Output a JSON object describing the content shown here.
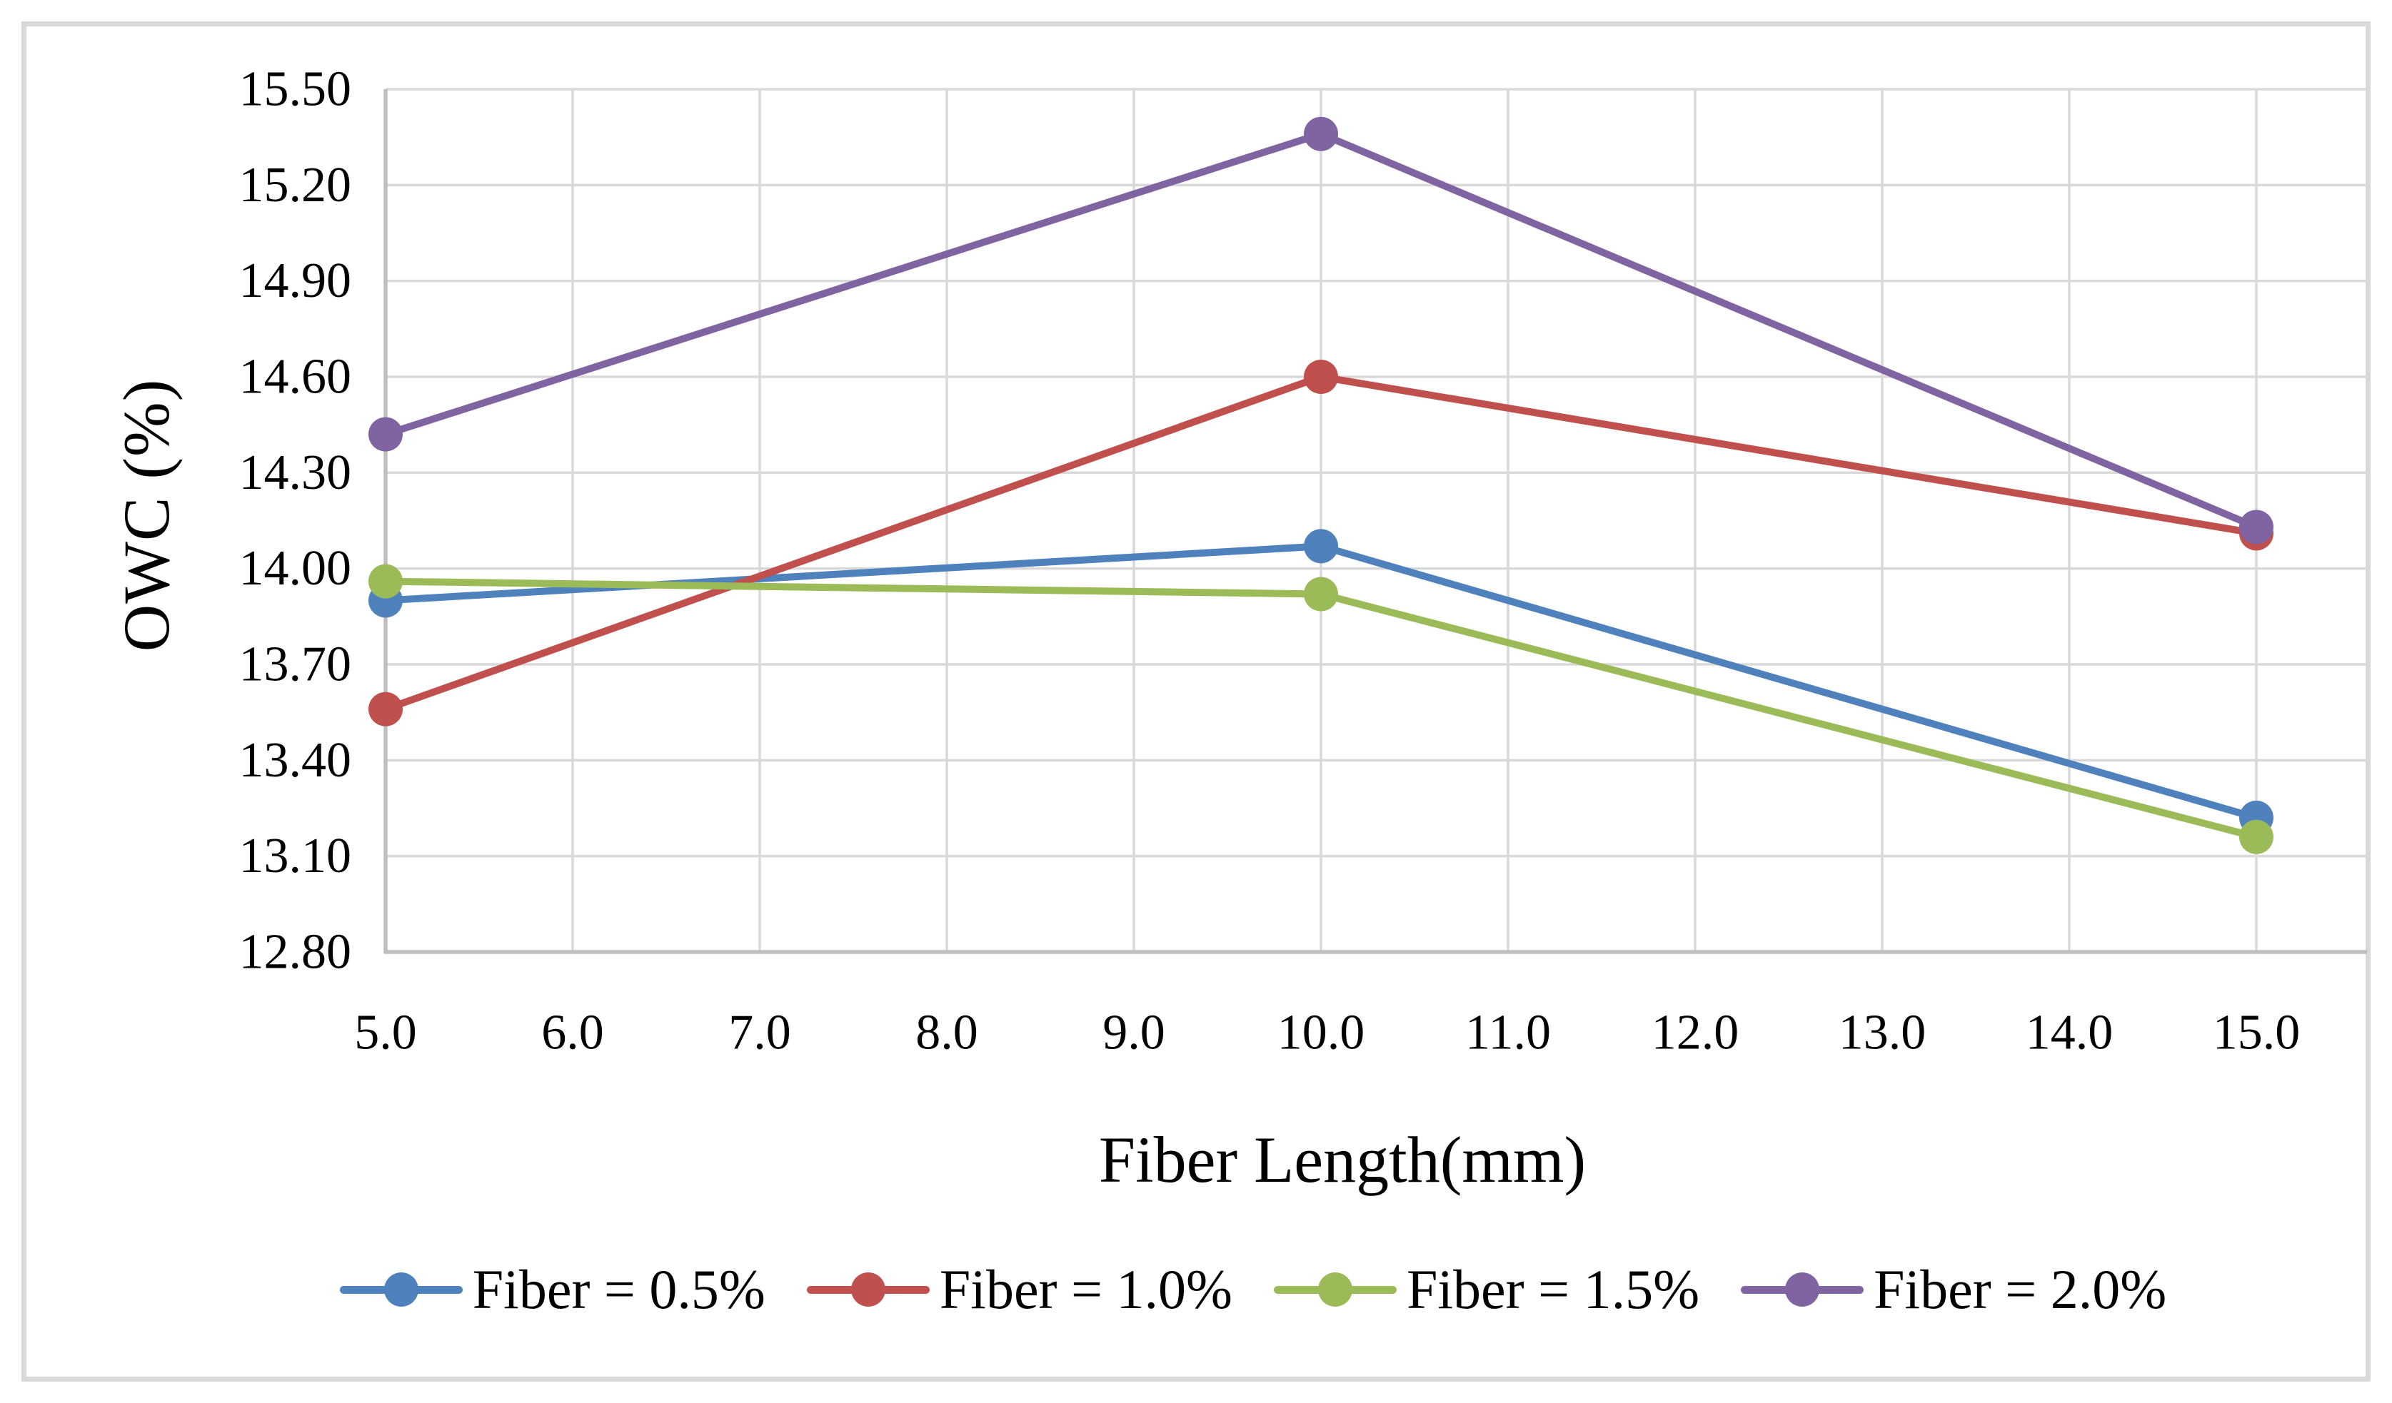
{
  "figure": {
    "background_color": "#FFFFFF",
    "border_color": "#D9D9D9"
  },
  "chart_data": {
    "type": "line",
    "title": "",
    "xlabel": "Fiber Length(mm)",
    "ylabel": "OWC (%)",
    "x": [
      5.0,
      10.0,
      15.0
    ],
    "series": [
      {
        "name": "Fiber = 0.5%",
        "color": "#4F81BD",
        "values": [
          13.9,
          14.07,
          13.22
        ]
      },
      {
        "name": "Fiber = 1.0%",
        "color": "#C0504D",
        "values": [
          13.56,
          14.6,
          14.11
        ]
      },
      {
        "name": "Fiber = 1.5%",
        "color": "#9BBB59",
        "values": [
          13.96,
          13.92,
          13.16
        ]
      },
      {
        "name": "Fiber = 2.0%",
        "color": "#8064A2",
        "values": [
          14.42,
          15.36,
          14.13
        ]
      }
    ],
    "x_axis": {
      "min": 5.0,
      "max": 15.0,
      "tick_step": 1.0,
      "tick_labels": [
        "5.0",
        "6.0",
        "7.0",
        "8.0",
        "9.0",
        "10.0",
        "11.0",
        "12.0",
        "13.0",
        "14.0",
        "15.0"
      ]
    },
    "y_axis": {
      "min": 12.8,
      "max": 15.5,
      "tick_step": 0.3,
      "tick_labels": [
        "15.50",
        "15.20",
        "14.90",
        "14.60",
        "14.30",
        "14.00",
        "13.70",
        "13.40",
        "13.10",
        "12.80"
      ]
    },
    "xlim": [
      5.0,
      15.6
    ],
    "ylim": [
      12.8,
      15.5
    ],
    "grid": true,
    "legend_position": "bottom",
    "marker": "circle",
    "colors": {
      "gridline": "#D9D9D9",
      "axis_line": "#BFBFBF",
      "text": "#000000"
    }
  }
}
